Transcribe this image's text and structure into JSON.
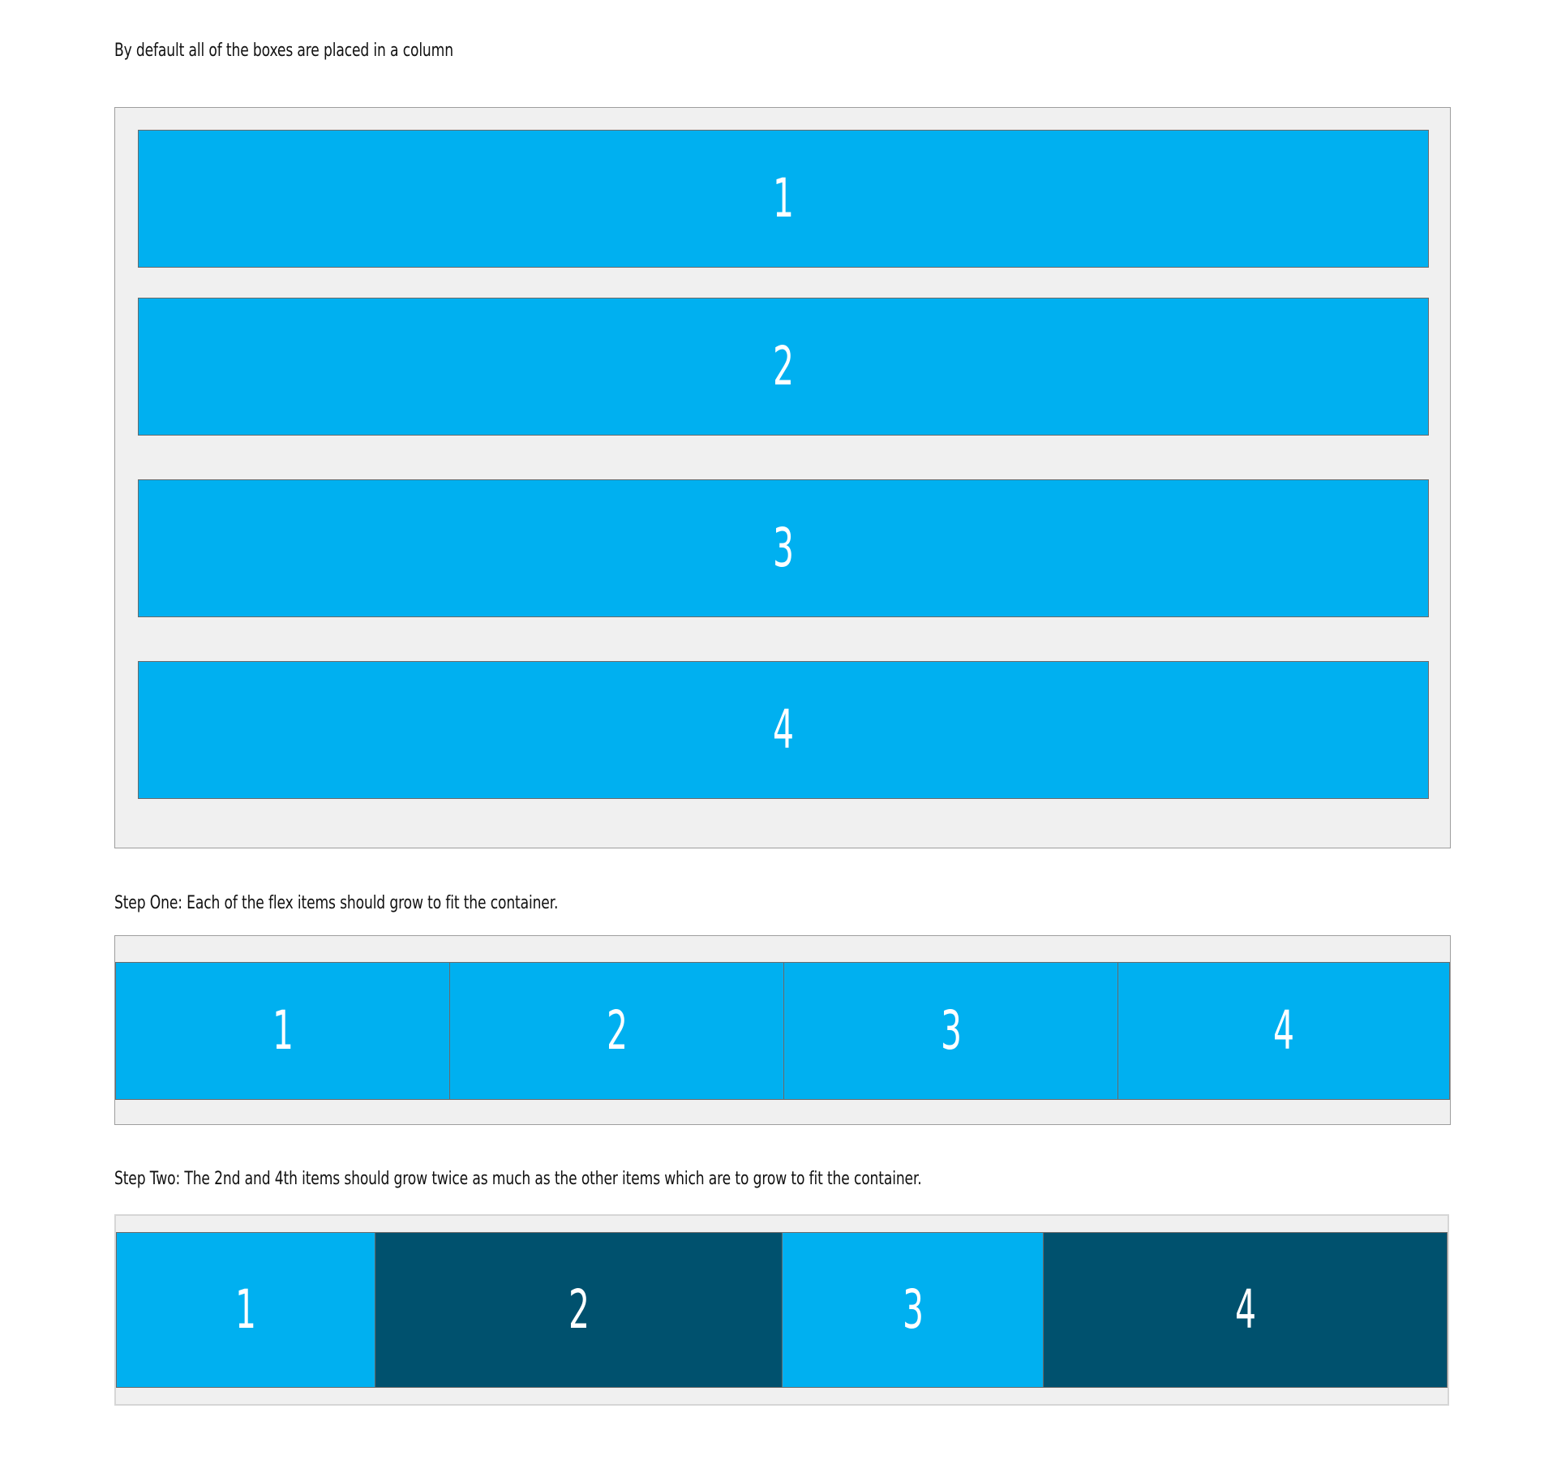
{
  "section_default": {
    "caption": "By default all of the boxes are placed in a column",
    "items": [
      "1",
      "2",
      "3",
      "4"
    ]
  },
  "section_step_one": {
    "caption": "Step One: Each of the flex items should grow to fit the container.",
    "items": [
      "1",
      "2",
      "3",
      "4"
    ]
  },
  "section_step_two": {
    "caption": "Step Two: The 2nd and 4th items should grow twice as much as the other items which are to grow to fit the container.",
    "items": [
      "1",
      "2",
      "3",
      "4"
    ]
  },
  "colors": {
    "item_light": "#00b0f0",
    "item_dark": "#00516e",
    "container_bg": "#f0f0f0",
    "item_text": "#ffffff"
  }
}
